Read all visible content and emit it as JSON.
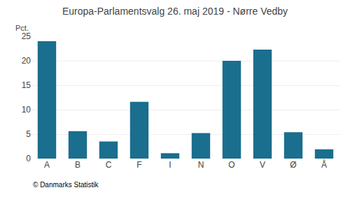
{
  "chart_data": {
    "type": "bar",
    "title": "Europa-Parlamentsvalg 26. maj 2019 - Nørre Vedby",
    "categories": [
      "A",
      "B",
      "C",
      "F",
      "I",
      "N",
      "O",
      "V",
      "Ø",
      "Å"
    ],
    "values": [
      24.0,
      5.6,
      3.5,
      11.6,
      1.1,
      5.2,
      20.0,
      22.3,
      5.4,
      1.9
    ],
    "color": "#1a6e8e",
    "ylabel": "Pct.",
    "ylim": [
      0,
      25
    ],
    "yticks": [
      0,
      5,
      10,
      15,
      20,
      25
    ],
    "grid": true,
    "annotations": [
      "© Danmarks Statistik"
    ]
  }
}
